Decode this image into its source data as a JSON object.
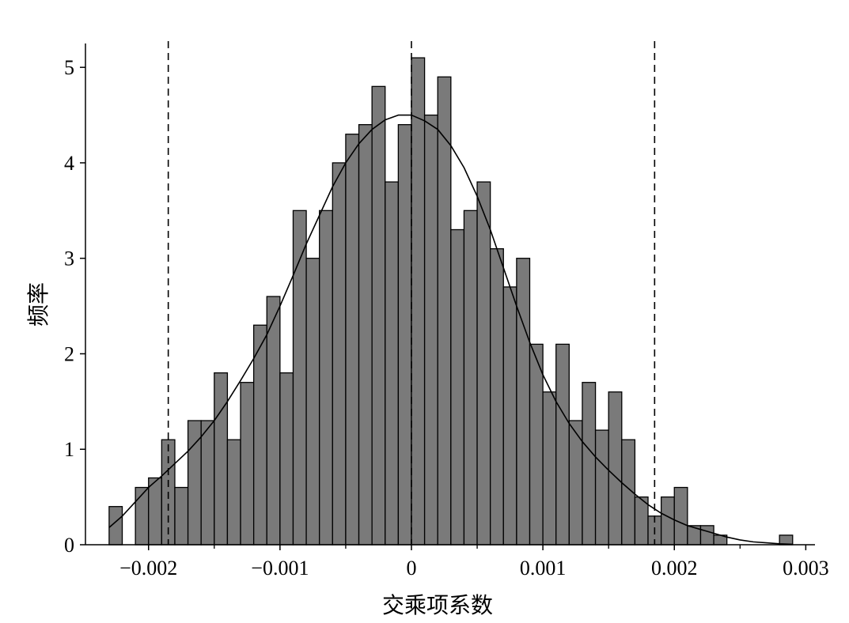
{
  "chart_data": {
    "type": "bar",
    "title": "",
    "xlabel": "交乘项系数",
    "ylabel": "频率",
    "xlim": [
      -0.00248,
      0.00307
    ],
    "ylim": [
      0,
      5.25
    ],
    "bin_width": 0.0001,
    "x_ticks": [
      -0.002,
      -0.001,
      0,
      0.001,
      0.002,
      0.003
    ],
    "x_tick_labels": [
      "−0.002",
      "−0.001",
      "0",
      "0.001",
      "0.002",
      "0.003"
    ],
    "y_ticks": [
      0,
      1,
      2,
      3,
      4,
      5
    ],
    "y_tick_labels": [
      "0",
      "1",
      "2",
      "3",
      "4",
      "5"
    ],
    "bars": {
      "x": [
        -0.00225,
        -0.00205,
        -0.00195,
        -0.00185,
        -0.00175,
        -0.00165,
        -0.00155,
        -0.00145,
        -0.00135,
        -0.00125,
        -0.00115,
        -0.00105,
        -0.00095,
        -0.00085,
        -0.00075,
        -0.00065,
        -0.00055,
        -0.00045,
        -0.00035,
        -0.00025,
        -0.00015,
        -5e-05,
        5e-05,
        0.00015,
        0.00025,
        0.00035,
        0.00045,
        0.00055,
        0.00065,
        0.00075,
        0.00085,
        0.00095,
        0.00105,
        0.00115,
        0.00125,
        0.00135,
        0.00145,
        0.00155,
        0.00165,
        0.00175,
        0.00185,
        0.00195,
        0.00205,
        0.00215,
        0.00225,
        0.00235,
        0.00285
      ],
      "values": [
        0.4,
        0.6,
        0.7,
        1.1,
        0.6,
        1.3,
        1.3,
        1.8,
        1.1,
        1.7,
        2.3,
        2.6,
        1.8,
        3.5,
        3.0,
        3.5,
        4.0,
        4.3,
        4.4,
        4.8,
        3.8,
        4.4,
        5.1,
        4.5,
        4.9,
        3.3,
        3.5,
        3.8,
        3.1,
        2.7,
        3.0,
        2.1,
        1.6,
        2.1,
        1.3,
        1.7,
        1.2,
        1.6,
        1.1,
        0.5,
        0.3,
        0.5,
        0.6,
        0.2,
        0.2,
        0.1,
        0.1
      ]
    },
    "kde_curve": {
      "x": [
        -0.0023,
        -0.0022,
        -0.0021,
        -0.002,
        -0.0019,
        -0.0018,
        -0.0017,
        -0.0016,
        -0.0015,
        -0.0014,
        -0.0013,
        -0.0012,
        -0.0011,
        -0.001,
        -0.0009,
        -0.0008,
        -0.0007,
        -0.0006,
        -0.0005,
        -0.0004,
        -0.0003,
        -0.0002,
        -0.0001,
        0.0,
        0.0001,
        0.0002,
        0.0003,
        0.0004,
        0.0005,
        0.0006,
        0.0007,
        0.0008,
        0.0009,
        0.001,
        0.0011,
        0.0012,
        0.0013,
        0.0014,
        0.0015,
        0.0016,
        0.0017,
        0.0018,
        0.0019,
        0.002,
        0.0021,
        0.0022,
        0.0023,
        0.0024,
        0.0025,
        0.0026,
        0.0027,
        0.0028,
        0.0029
      ],
      "y": [
        0.18,
        0.3,
        0.45,
        0.6,
        0.72,
        0.85,
        0.98,
        1.13,
        1.3,
        1.5,
        1.72,
        1.95,
        2.2,
        2.5,
        2.82,
        3.15,
        3.45,
        3.75,
        4.0,
        4.2,
        4.35,
        4.45,
        4.5,
        4.5,
        4.44,
        4.35,
        4.18,
        3.95,
        3.65,
        3.3,
        2.9,
        2.5,
        2.12,
        1.78,
        1.5,
        1.27,
        1.08,
        0.92,
        0.78,
        0.65,
        0.53,
        0.42,
        0.33,
        0.26,
        0.2,
        0.16,
        0.12,
        0.08,
        0.05,
        0.03,
        0.02,
        0.01,
        0.005
      ]
    },
    "reference_lines_x": [
      -0.00185,
      0.0,
      0.00185
    ],
    "colors": {
      "bar_fill": "#7a7a7a",
      "bar_edge": "#000000",
      "curve": "#000000",
      "reference_line": "#000000"
    },
    "grid": false,
    "legend": "none"
  }
}
